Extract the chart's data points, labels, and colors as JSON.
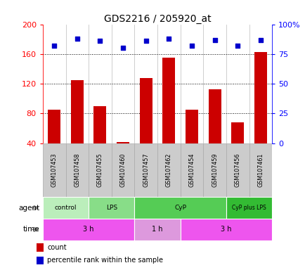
{
  "title": "GDS2216 / 205920_at",
  "samples": [
    "GSM107453",
    "GSM107458",
    "GSM107455",
    "GSM107460",
    "GSM107457",
    "GSM107462",
    "GSM107454",
    "GSM107459",
    "GSM107456",
    "GSM107461"
  ],
  "counts": [
    85,
    125,
    90,
    41,
    128,
    155,
    85,
    112,
    68,
    163
  ],
  "percentile_ranks": [
    82,
    88,
    86,
    80,
    86,
    88,
    82,
    87,
    82,
    87
  ],
  "ymin": 40,
  "ymax": 200,
  "yticks": [
    40,
    80,
    120,
    160,
    200
  ],
  "y2ticks": [
    0,
    25,
    50,
    75,
    100
  ],
  "y2ticklabels": [
    "0",
    "25",
    "50",
    "75",
    "100%"
  ],
  "bar_color": "#cc0000",
  "dot_color": "#0000cc",
  "dot_size": 16,
  "agent_groups": [
    {
      "label": "control",
      "start": 0,
      "end": 2,
      "color": "#bbeebb"
    },
    {
      "label": "LPS",
      "start": 2,
      "end": 4,
      "color": "#88dd88"
    },
    {
      "label": "CyP",
      "start": 4,
      "end": 8,
      "color": "#55cc55"
    },
    {
      "label": "CyP plus LPS",
      "start": 8,
      "end": 10,
      "color": "#33bb33"
    }
  ],
  "time_groups": [
    {
      "label": "3 h",
      "start": 0,
      "end": 4,
      "color": "#ee55ee"
    },
    {
      "label": "1 h",
      "start": 4,
      "end": 6,
      "color": "#dd99dd"
    },
    {
      "label": "3 h",
      "start": 6,
      "end": 10,
      "color": "#ee55ee"
    }
  ],
  "sample_box_color": "#cccccc",
  "sample_box_edge": "#aaaaaa",
  "grid_lines": [
    80,
    120,
    160
  ],
  "bar_bottom": 40
}
